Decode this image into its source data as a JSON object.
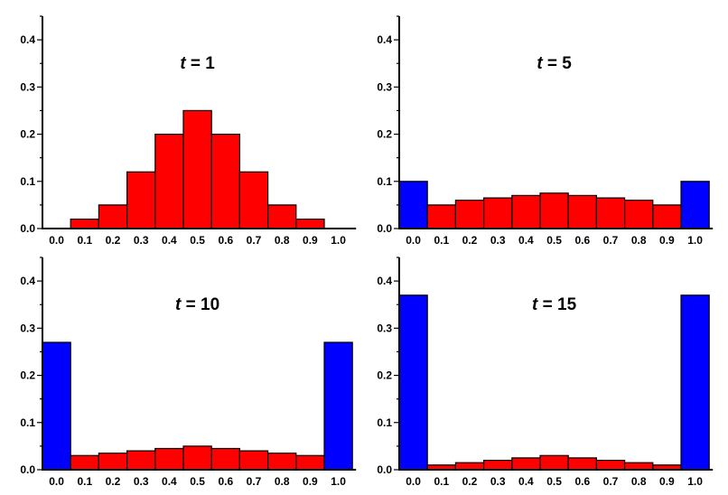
{
  "colors": {
    "interior": "#ff0000",
    "boundary": "#0000ff",
    "axis": "#000000"
  },
  "chart_data": [
    {
      "type": "bar",
      "title_var": "t",
      "title_rest": " = 1",
      "ylim": [
        0,
        0.45
      ],
      "yticks": [
        "0.0",
        "0.1",
        "0.2",
        "0.3",
        "0.4"
      ],
      "xtick_labels": [
        "0.0",
        "0.1",
        "0.2",
        "0.3",
        "0.4",
        "0.5",
        "0.6",
        "0.7",
        "0.8",
        "0.9",
        "1.0"
      ],
      "values": [
        0.0,
        0.02,
        0.05,
        0.12,
        0.2,
        0.25,
        0.2,
        0.12,
        0.05,
        0.02,
        0.0
      ],
      "boundary_bars": [
        0,
        10
      ]
    },
    {
      "type": "bar",
      "title_var": "t",
      "title_rest": " = 5",
      "ylim": [
        0,
        0.45
      ],
      "yticks": [
        "0.0",
        "0.1",
        "0.2",
        "0.3",
        "0.4"
      ],
      "xtick_labels": [
        "0.0",
        "0.1",
        "0.2",
        "0.3",
        "0.4",
        "0.5",
        "0.6",
        "0.7",
        "0.8",
        "0.9",
        "1.0"
      ],
      "values": [
        0.1,
        0.05,
        0.06,
        0.065,
        0.07,
        0.075,
        0.07,
        0.065,
        0.06,
        0.05,
        0.1
      ],
      "boundary_bars": [
        0,
        10
      ]
    },
    {
      "type": "bar",
      "title_var": "t",
      "title_rest": " = 10",
      "ylim": [
        0,
        0.45
      ],
      "yticks": [
        "0.0",
        "0.1",
        "0.2",
        "0.3",
        "0.4"
      ],
      "xtick_labels": [
        "0.0",
        "0.1",
        "0.2",
        "0.3",
        "0.4",
        "0.5",
        "0.6",
        "0.7",
        "0.8",
        "0.9",
        "1.0"
      ],
      "values": [
        0.27,
        0.03,
        0.035,
        0.04,
        0.045,
        0.05,
        0.045,
        0.04,
        0.035,
        0.03,
        0.27
      ],
      "boundary_bars": [
        0,
        10
      ]
    },
    {
      "type": "bar",
      "title_var": "t",
      "title_rest": " = 15",
      "ylim": [
        0,
        0.45
      ],
      "yticks": [
        "0.0",
        "0.1",
        "0.2",
        "0.3",
        "0.4"
      ],
      "xtick_labels": [
        "0.0",
        "0.1",
        "0.2",
        "0.3",
        "0.4",
        "0.5",
        "0.6",
        "0.7",
        "0.8",
        "0.9",
        "1.0"
      ],
      "values": [
        0.37,
        0.01,
        0.015,
        0.02,
        0.025,
        0.03,
        0.025,
        0.02,
        0.015,
        0.01,
        0.37
      ],
      "boundary_bars": [
        0,
        10
      ]
    }
  ]
}
